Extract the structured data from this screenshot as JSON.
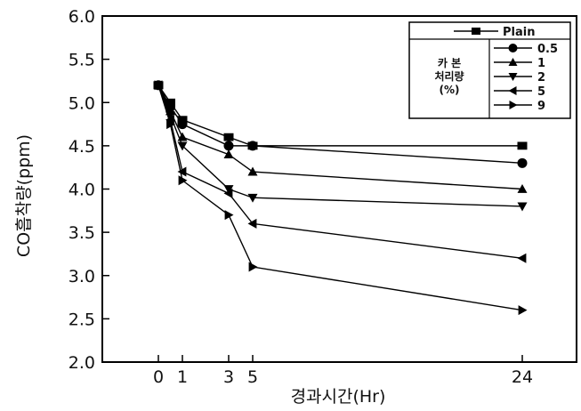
{
  "chart_data": {
    "type": "line",
    "xlabel": "경과시간(Hr)",
    "ylabel": "CO흡착량(ppm)",
    "ylim": [
      2.0,
      6.0
    ],
    "y_ticks": [
      "2.0",
      "2.5",
      "3.0",
      "3.5",
      "4.0",
      "4.5",
      "5.0",
      "5.5",
      "6.0"
    ],
    "x_ticks": [
      "0",
      "1",
      "3",
      "5",
      "24"
    ],
    "x": [
      0,
      0.5,
      1,
      3,
      5,
      24
    ],
    "legend_placement": "top-right",
    "legend_group_label": [
      "카 본",
      "처리량",
      "(%)"
    ],
    "series": [
      {
        "name": "Plain",
        "marker": "square",
        "values": [
          5.2,
          5.0,
          4.8,
          4.6,
          4.5,
          4.5
        ]
      },
      {
        "name": "0.5",
        "marker": "circle",
        "values": [
          5.2,
          4.95,
          4.75,
          4.5,
          4.5,
          4.3
        ]
      },
      {
        "name": "1",
        "marker": "triangle-up",
        "values": [
          5.2,
          4.9,
          4.6,
          4.4,
          4.2,
          4.0
        ]
      },
      {
        "name": "2",
        "marker": "triangle-down",
        "values": [
          5.2,
          4.85,
          4.5,
          4.0,
          3.9,
          3.8
        ]
      },
      {
        "name": "5",
        "marker": "triangle-left",
        "values": [
          5.2,
          4.8,
          4.2,
          3.95,
          3.6,
          3.2
        ]
      },
      {
        "name": "9",
        "marker": "triangle-right",
        "values": [
          5.2,
          4.75,
          4.1,
          3.7,
          3.1,
          2.6
        ]
      }
    ]
  }
}
